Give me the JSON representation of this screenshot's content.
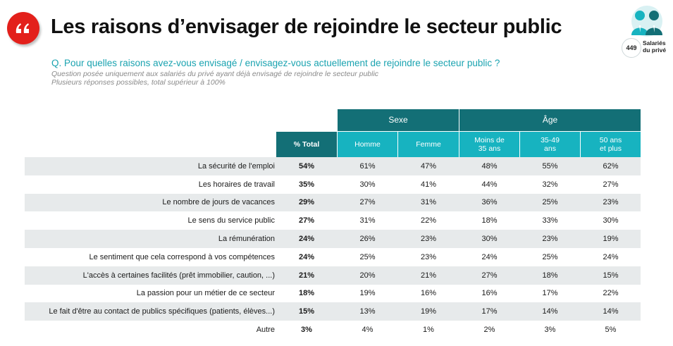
{
  "header": {
    "title": "Les raisons d’envisager de rejoindre le secteur public",
    "badge_count": "449",
    "badge_caption": [
      "Salariés",
      "du privé"
    ]
  },
  "question": {
    "text": "Q. Pour quelles raisons avez-vous envisagé / envisagez-vous actuellement de rejoindre le secteur public ?",
    "note1": "Question posée uniquement aux salariés du privé ayant déjà envisagé de rejoindre le secteur public",
    "note2": "Plusieurs réponses possibles, total supérieur à 100%"
  },
  "colors": {
    "brand_red": "#e3201b",
    "header_dark": "#136f76",
    "header_light": "#17b3c0",
    "question_text": "#1aa3b0",
    "row_shade": "#e7eaeb"
  },
  "table": {
    "groups": {
      "sexe": "Sexe",
      "age": "Âge"
    },
    "columns": {
      "total": "% Total",
      "homme": "Homme",
      "femme": "Femme",
      "age1": [
        "Moins de",
        "35 ans"
      ],
      "age2": [
        "35-49",
        "ans"
      ],
      "age3": [
        "50 ans",
        "et plus"
      ]
    },
    "rows": [
      {
        "label": "La sécurité de l'emploi",
        "values": [
          "54%",
          "61%",
          "47%",
          "48%",
          "55%",
          "62%"
        ]
      },
      {
        "label": "Les horaires de travail",
        "values": [
          "35%",
          "30%",
          "41%",
          "44%",
          "32%",
          "27%"
        ]
      },
      {
        "label": "Le nombre de jours de vacances",
        "values": [
          "29%",
          "27%",
          "31%",
          "36%",
          "25%",
          "23%"
        ]
      },
      {
        "label": "Le sens du service public",
        "values": [
          "27%",
          "31%",
          "22%",
          "18%",
          "33%",
          "30%"
        ]
      },
      {
        "label": "La rémunération",
        "values": [
          "24%",
          "26%",
          "23%",
          "30%",
          "23%",
          "19%"
        ]
      },
      {
        "label": "Le sentiment que cela correspond à vos compétences",
        "values": [
          "24%",
          "25%",
          "23%",
          "24%",
          "25%",
          "24%"
        ]
      },
      {
        "label": "L'accès à certaines facilités (prêt immobilier, caution, ...)",
        "values": [
          "21%",
          "20%",
          "21%",
          "27%",
          "18%",
          "15%"
        ]
      },
      {
        "label": "La passion pour un métier de ce secteur",
        "values": [
          "18%",
          "19%",
          "16%",
          "16%",
          "17%",
          "22%"
        ]
      },
      {
        "label": "Le fait d'être au contact de publics spécifiques (patients, élèves...)",
        "values": [
          "15%",
          "13%",
          "19%",
          "17%",
          "14%",
          "14%"
        ]
      },
      {
        "label": "Autre",
        "values": [
          "3%",
          "4%",
          "1%",
          "2%",
          "3%",
          "5%"
        ]
      }
    ]
  }
}
